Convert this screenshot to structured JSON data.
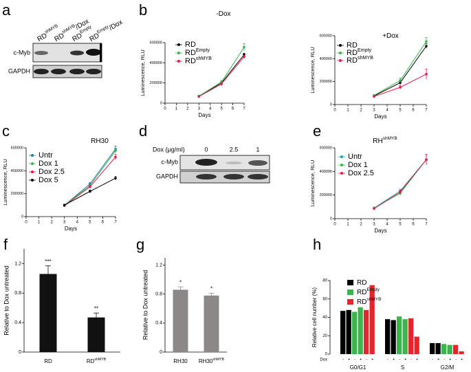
{
  "panel_labels": [
    "a",
    "b",
    "c",
    "d",
    "e",
    "f",
    "g",
    "h"
  ],
  "blots": {
    "a": {
      "columns": [
        {
          "text": "RD",
          "sup": "shMYB"
        },
        {
          "text": "RD",
          "sup": "shMYB",
          "suffix": "/Dox"
        },
        {
          "text": "RD",
          "sup": "Empty"
        },
        {
          "text": "RD",
          "sup": "Empty",
          "suffix": "/Dox"
        }
      ],
      "rows": [
        "c-Myb",
        "GAPDH"
      ]
    },
    "d": {
      "title": "Dox (µg/ml)",
      "columns": [
        "0",
        "2.5",
        "1"
      ],
      "rows": [
        "c-Myb",
        "GAPDH"
      ]
    }
  },
  "chart_data": [
    {
      "type": "line",
      "title": "-Dox",
      "xlabel": "Days",
      "ylabel": "Luminescence, RLU",
      "x": [
        3,
        5,
        7
      ],
      "xlim": [
        0,
        7
      ],
      "xticks": [
        0,
        1,
        2,
        3,
        4,
        5,
        6,
        7
      ],
      "ylim": [
        0,
        600000
      ],
      "yticks": [
        0,
        200000,
        400000,
        600000
      ],
      "series": [
        {
          "name": "RD",
          "color": "#000000",
          "values": [
            70000,
            200000,
            480000
          ],
          "errors": [
            5000,
            15000,
            15000
          ]
        },
        {
          "name": "RD",
          "superscript": "Empty",
          "color": "#3cb44b",
          "values": [
            70000,
            210000,
            555000
          ],
          "errors": [
            5000,
            15000,
            35000
          ]
        },
        {
          "name": "RD",
          "superscript": "shMYB",
          "color": "#e6194b",
          "values": [
            65000,
            190000,
            460000
          ],
          "errors": [
            5000,
            20000,
            15000
          ]
        }
      ]
    },
    {
      "type": "line",
      "title": "+Dox",
      "xlabel": "Days",
      "ylabel": "Luminescence, RLU",
      "x": [
        3,
        5,
        7
      ],
      "xlim": [
        0,
        7
      ],
      "xticks": [
        0,
        1,
        2,
        3,
        4,
        5,
        6,
        7
      ],
      "ylim": [
        0,
        600000
      ],
      "yticks": [
        0,
        200000,
        400000,
        600000
      ],
      "series": [
        {
          "name": "RD",
          "color": "#000000",
          "values": [
            75000,
            190000,
            510000
          ],
          "errors": [
            5000,
            15000,
            20000
          ]
        },
        {
          "name": "RD",
          "superscript": "Empty",
          "color": "#3cb44b",
          "values": [
            80000,
            210000,
            550000
          ],
          "errors": [
            5000,
            20000,
            35000
          ]
        },
        {
          "name": "RD",
          "superscript": "shMYB",
          "color": "#e6194b",
          "values": [
            70000,
            150000,
            265000
          ],
          "errors": [
            5000,
            15000,
            45000
          ]
        }
      ]
    },
    {
      "type": "line",
      "title": "RH30",
      "xlabel": "Days",
      "ylabel": "Luminescence, RLU",
      "x": [
        3,
        5,
        7
      ],
      "xlim": [
        0,
        7
      ],
      "xticks": [
        0,
        1,
        2,
        3,
        4,
        5,
        6,
        7
      ],
      "ylim": [
        0,
        600000
      ],
      "yticks": [
        0,
        200000,
        400000,
        600000
      ],
      "series": [
        {
          "name": "Untr",
          "color": "#1f77b4",
          "values": [
            100000,
            285000,
            590000
          ],
          "errors": [
            8000,
            12000,
            25000
          ]
        },
        {
          "name": "Dox 1",
          "color": "#3cb44b",
          "values": [
            100000,
            270000,
            575000
          ],
          "errors": [
            8000,
            12000,
            20000
          ]
        },
        {
          "name": "Dox 2.5",
          "color": "#e6194b",
          "values": [
            95000,
            260000,
            520000
          ],
          "errors": [
            8000,
            12000,
            25000
          ]
        },
        {
          "name": "Dox 5",
          "color": "#000000",
          "values": [
            100000,
            220000,
            335000
          ],
          "errors": [
            8000,
            12000,
            15000
          ]
        }
      ]
    },
    {
      "type": "line",
      "title": "RH",
      "title_superscript": "shMYB",
      "xlabel": "Days",
      "ylabel": "Luminescence, RLU",
      "x": [
        3,
        5,
        7
      ],
      "xlim": [
        0,
        7
      ],
      "xticks": [
        0,
        1,
        2,
        3,
        4,
        5,
        6,
        7
      ],
      "ylim": [
        0,
        600000
      ],
      "yticks": [
        0,
        200000,
        400000,
        600000
      ],
      "series": [
        {
          "name": "Untr",
          "color": "#17a2b8",
          "values": [
            90000,
            235000,
            500000
          ],
          "errors": [
            8000,
            15000,
            45000
          ]
        },
        {
          "name": "Dox 1",
          "color": "#3cb44b",
          "values": [
            90000,
            215000,
            500000
          ],
          "errors": [
            8000,
            15000,
            45000
          ]
        },
        {
          "name": "Dox 2.5",
          "color": "#e6194b",
          "values": [
            85000,
            225000,
            500000
          ],
          "errors": [
            8000,
            15000,
            45000
          ]
        }
      ]
    },
    {
      "type": "bar",
      "ylabel": "Relative to Dox untreated",
      "categories": [
        {
          "text": "RD"
        },
        {
          "text": "RD",
          "sup": "shMYB"
        }
      ],
      "values": [
        1.06,
        0.47
      ],
      "errors": [
        0.11,
        0.06
      ],
      "annotations": [
        "***",
        "**"
      ],
      "color": "#111111",
      "ylim": [
        0,
        1.4
      ],
      "yticks": [
        0,
        0.4,
        0.8,
        1.2
      ]
    },
    {
      "type": "bar",
      "ylabel": "Relative to Dox untreated",
      "categories": [
        {
          "text": "RH30"
        },
        {
          "text": "RH30",
          "sup": "shMYB"
        }
      ],
      "values": [
        0.86,
        0.78
      ],
      "errors": [
        0.04,
        0.03
      ],
      "annotations": [
        "*",
        "*"
      ],
      "color": "#8c8888",
      "ylim": [
        0,
        1.3
      ],
      "yticks": [
        0,
        0.4,
        0.8,
        1.2
      ]
    },
    {
      "type": "grouped_bar",
      "ylabel": "Relative cell number (%)",
      "categories": [
        "G0/G1",
        "S",
        "G2/M"
      ],
      "treatment_label": "Dox",
      "treatments": [
        "-",
        "+"
      ],
      "ylim": [
        0,
        80
      ],
      "yticks": [
        0,
        20,
        40,
        60,
        80
      ],
      "series": [
        {
          "name": "RD",
          "color": "#000000",
          "values": [
            [
              47,
              48
            ],
            [
              38,
              37
            ],
            [
              12,
              12
            ]
          ]
        },
        {
          "name": "RD",
          "superscript": "Empty",
          "color": "#3cb44b",
          "values": [
            [
              46,
              51
            ],
            [
              41,
              38
            ],
            [
              11,
              10
            ]
          ]
        },
        {
          "name": "RD",
          "superscript": "shMYB",
          "color": "#e8242b",
          "values": [
            [
              48,
              75
            ],
            [
              39,
              19
            ],
            [
              10,
              3
            ]
          ]
        }
      ]
    }
  ]
}
